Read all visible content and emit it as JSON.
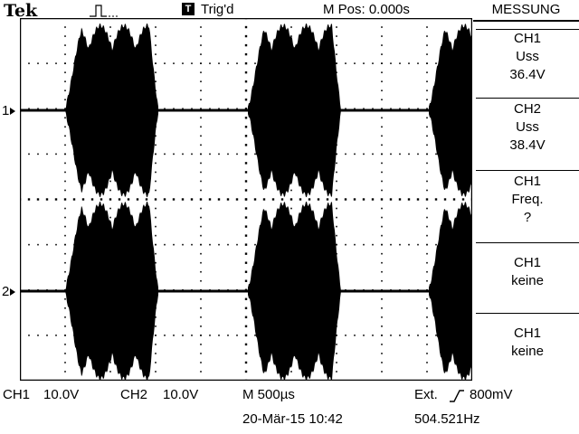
{
  "header": {
    "brand": "Tek",
    "trigger_status": "Trig'd",
    "trigger_icon": "T",
    "m_pos": "M Pos: 0.000s",
    "acquire_icon": "pulse-icon",
    "trigger_marker_icon": "trigger-position-icon"
  },
  "channels": {
    "ch1_marker": "1",
    "ch2_marker": "2"
  },
  "menu": {
    "title": "MESSUNG",
    "items": [
      {
        "line1": "CH1",
        "line2": "Uss",
        "line3": "36.4V"
      },
      {
        "line1": "CH2",
        "line2": "Uss",
        "line3": "38.4V"
      },
      {
        "line1": "CH1",
        "line2": "Freq.",
        "line3": "?"
      },
      {
        "line1": "CH1",
        "line2": "keine"
      },
      {
        "line1": "CH1",
        "line2": "keine"
      }
    ]
  },
  "footer": {
    "ch1_label": "CH1",
    "ch1_scale": "10.0V",
    "ch2_label": "CH2",
    "ch2_scale": "10.0V",
    "timebase": "M 500µs",
    "date_time": "20-Mär-15 10:42",
    "trigger_source": "Ext.",
    "trigger_slope_icon": "rising-edge-icon",
    "trigger_level": "800mV",
    "frequency": "504.521Hz"
  },
  "colors": {
    "trace": "#000000",
    "background": "#ffffff"
  }
}
